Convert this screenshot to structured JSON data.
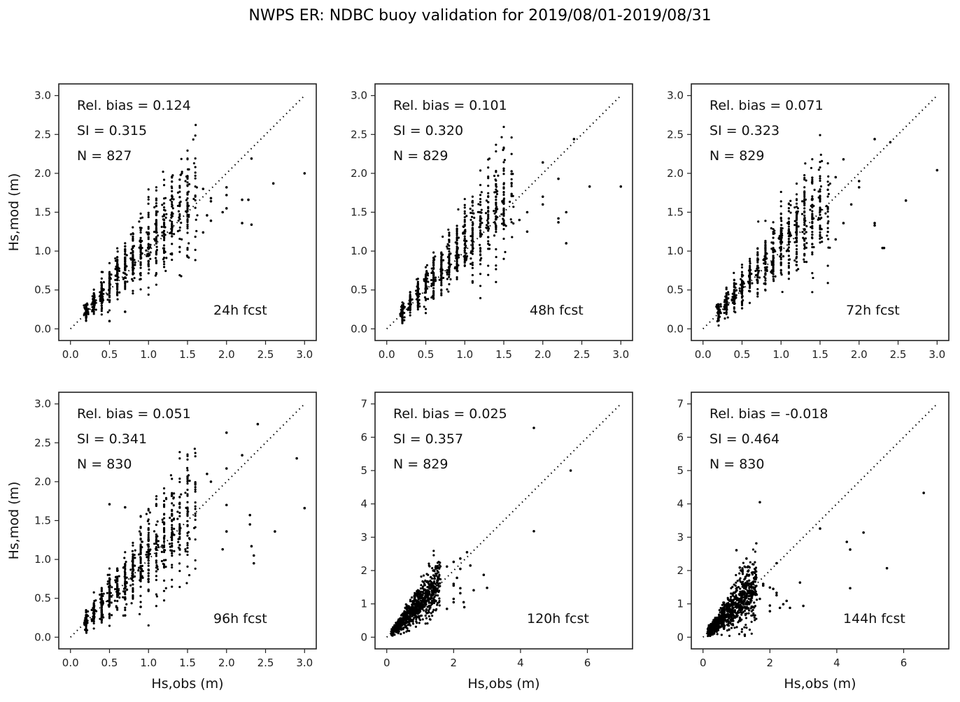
{
  "figure": {
    "title": "NWPS ER: NDBC buoy validation for 2019/08/01-2019/08/31"
  },
  "chart_data": [
    {
      "type": "scatter",
      "panel": "24h fcst",
      "xlabel": "",
      "ylabel": "Hs,mod (m)",
      "xlim": [
        -0.15,
        3.15
      ],
      "ylim": [
        -0.15,
        3.15
      ],
      "xticks": [
        "0.0",
        "0.5",
        "1.0",
        "1.5",
        "2.0",
        "2.5",
        "3.0"
      ],
      "yticks": [
        "0.0",
        "0.5",
        "1.0",
        "1.5",
        "2.0",
        "2.5",
        "3.0"
      ],
      "tickvals": [
        0,
        0.5,
        1,
        1.5,
        2,
        2.5,
        3
      ],
      "stats": {
        "rel_bias": "Rel. bias =  0.124",
        "si": "SI =  0.315",
        "n": "N = 827"
      },
      "label": "24h fcst",
      "identity_line": [
        0,
        3
      ],
      "cloud": {
        "n": 827,
        "bias": 0.124,
        "si": 0.315,
        "xmax": 1.6
      },
      "outliers": [
        [
          3.0,
          2.0
        ],
        [
          2.6,
          1.87
        ],
        [
          2.32,
          2.19
        ],
        [
          2.2,
          1.36
        ],
        [
          2.32,
          1.34
        ],
        [
          2.2,
          1.66
        ],
        [
          2.28,
          1.66
        ],
        [
          2.0,
          1.82
        ],
        [
          2.0,
          1.72
        ],
        [
          1.95,
          1.5
        ],
        [
          2.0,
          1.55
        ],
        [
          1.8,
          1.64
        ],
        [
          1.8,
          1.68
        ],
        [
          1.7,
          1.8
        ],
        [
          1.7,
          1.24
        ],
        [
          1.8,
          1.39
        ],
        [
          1.75,
          1.46
        ],
        [
          0.7,
          0.22
        ],
        [
          0.5,
          0.1
        ]
      ]
    },
    {
      "type": "scatter",
      "panel": "48h fcst",
      "xlabel": "",
      "ylabel": "",
      "xlim": [
        -0.15,
        3.15
      ],
      "ylim": [
        -0.15,
        3.15
      ],
      "xticks": [
        "0.0",
        "0.5",
        "1.0",
        "1.5",
        "2.0",
        "2.5",
        "3.0"
      ],
      "yticks": [
        "0.0",
        "0.5",
        "1.0",
        "1.5",
        "2.0",
        "2.5",
        "3.0"
      ],
      "tickvals": [
        0,
        0.5,
        1,
        1.5,
        2,
        2.5,
        3
      ],
      "stats": {
        "rel_bias": "Rel. bias =  0.101",
        "si": "SI =  0.320",
        "n": "N = 829"
      },
      "label": "48h fcst",
      "identity_line": [
        0,
        3
      ],
      "cloud": {
        "n": 829,
        "bias": 0.101,
        "si": 0.32,
        "xmax": 1.6
      },
      "outliers": [
        [
          3.0,
          1.83
        ],
        [
          2.6,
          1.83
        ],
        [
          2.4,
          2.44
        ],
        [
          2.0,
          2.14
        ],
        [
          2.2,
          1.93
        ],
        [
          2.0,
          1.7
        ],
        [
          2.0,
          1.6
        ],
        [
          2.2,
          1.42
        ],
        [
          2.2,
          1.37
        ],
        [
          2.3,
          1.5
        ],
        [
          2.3,
          1.1
        ],
        [
          1.8,
          1.5
        ],
        [
          1.8,
          1.25
        ],
        [
          1.7,
          1.4
        ]
      ]
    },
    {
      "type": "scatter",
      "panel": "72h fcst",
      "xlabel": "",
      "ylabel": "",
      "xlim": [
        -0.15,
        3.15
      ],
      "ylim": [
        -0.15,
        3.15
      ],
      "xticks": [
        "0.0",
        "0.5",
        "1.0",
        "1.5",
        "2.0",
        "2.5",
        "3.0"
      ],
      "yticks": [
        "0.0",
        "0.5",
        "1.0",
        "1.5",
        "2.0",
        "2.5",
        "3.0"
      ],
      "tickvals": [
        0,
        0.5,
        1,
        1.5,
        2,
        2.5,
        3
      ],
      "stats": {
        "rel_bias": "Rel. bias =  0.071",
        "si": "SI =  0.323",
        "n": "N = 829"
      },
      "label": "72h fcst",
      "identity_line": [
        0,
        3
      ],
      "cloud": {
        "n": 829,
        "bias": 0.071,
        "si": 0.323,
        "xmax": 1.6
      },
      "outliers": [
        [
          3.0,
          2.04
        ],
        [
          2.6,
          1.65
        ],
        [
          2.2,
          2.44
        ],
        [
          2.4,
          2.4
        ],
        [
          2.2,
          1.36
        ],
        [
          2.2,
          1.33
        ],
        [
          2.3,
          1.04
        ],
        [
          2.32,
          1.04
        ],
        [
          2.0,
          1.9
        ],
        [
          2.0,
          1.82
        ],
        [
          1.8,
          2.18
        ],
        [
          1.7,
          1.95
        ],
        [
          1.9,
          1.6
        ],
        [
          1.8,
          1.36
        ],
        [
          1.7,
          1.15
        ]
      ]
    },
    {
      "type": "scatter",
      "panel": "96h fcst",
      "xlabel": "Hs,obs (m)",
      "ylabel": "Hs,mod (m)",
      "xlim": [
        -0.15,
        3.15
      ],
      "ylim": [
        -0.15,
        3.15
      ],
      "xticks": [
        "0.0",
        "0.5",
        "1.0",
        "1.5",
        "2.0",
        "2.5",
        "3.0"
      ],
      "yticks": [
        "0.0",
        "0.5",
        "1.0",
        "1.5",
        "2.0",
        "2.5",
        "3.0"
      ],
      "tickvals": [
        0,
        0.5,
        1,
        1.5,
        2,
        2.5,
        3
      ],
      "stats": {
        "rel_bias": "Rel. bias =  0.051",
        "si": "SI =  0.341",
        "n": "N = 830"
      },
      "label": "96h fcst",
      "identity_line": [
        0,
        3
      ],
      "cloud": {
        "n": 830,
        "bias": 0.051,
        "si": 0.341,
        "xmax": 1.6
      },
      "outliers": [
        [
          3.0,
          1.66
        ],
        [
          2.9,
          2.3
        ],
        [
          2.62,
          1.36
        ],
        [
          2.4,
          2.74
        ],
        [
          2.2,
          2.34
        ],
        [
          2.0,
          2.63
        ],
        [
          2.0,
          2.17
        ],
        [
          2.0,
          1.7
        ],
        [
          2.0,
          1.36
        ],
        [
          2.3,
          1.57
        ],
        [
          2.3,
          1.45
        ],
        [
          2.32,
          1.17
        ],
        [
          2.35,
          1.05
        ],
        [
          2.35,
          0.95
        ],
        [
          1.95,
          1.13
        ],
        [
          1.8,
          2.0
        ],
        [
          1.75,
          2.1
        ],
        [
          0.5,
          1.71
        ],
        [
          0.7,
          1.67
        ],
        [
          0.9,
          0.39
        ],
        [
          0.7,
          0.28
        ]
      ]
    },
    {
      "type": "scatter",
      "panel": "120h fcst",
      "xlabel": "Hs,obs (m)",
      "ylabel": "",
      "xlim": [
        -0.35,
        7.35
      ],
      "ylim": [
        -0.35,
        7.35
      ],
      "xticks": [
        "0",
        "2",
        "4",
        "6"
      ],
      "yticks": [
        "0",
        "1",
        "2",
        "3",
        "4",
        "5",
        "6",
        "7"
      ],
      "xtickvals": [
        0,
        2,
        4,
        6
      ],
      "ytickvals": [
        0,
        1,
        2,
        3,
        4,
        5,
        6,
        7
      ],
      "stats": {
        "rel_bias": "Rel. bias =  0.025",
        "si": "SI =  0.357",
        "n": "N = 829"
      },
      "label": "120h fcst",
      "identity_line": [
        0,
        7
      ],
      "cloud": {
        "n": 829,
        "bias": 0.025,
        "si": 0.357,
        "xmax": 1.6
      },
      "outliers": [
        [
          4.4,
          6.28
        ],
        [
          5.5,
          5.0
        ],
        [
          4.4,
          3.18
        ],
        [
          2.4,
          2.55
        ],
        [
          2.2,
          2.36
        ],
        [
          2.0,
          2.26
        ],
        [
          1.8,
          2.12
        ],
        [
          2.5,
          2.15
        ],
        [
          2.2,
          2.05
        ],
        [
          2.1,
          1.78
        ],
        [
          2.9,
          1.87
        ],
        [
          3.0,
          1.48
        ],
        [
          2.6,
          1.41
        ],
        [
          2.0,
          1.6
        ],
        [
          2.0,
          1.55
        ],
        [
          2.2,
          1.47
        ],
        [
          2.2,
          1.32
        ],
        [
          2.0,
          1.15
        ],
        [
          2.0,
          1.05
        ],
        [
          2.3,
          1.05
        ],
        [
          2.32,
          0.9
        ],
        [
          1.8,
          0.85
        ]
      ]
    },
    {
      "type": "scatter",
      "panel": "144h fcst",
      "xlabel": "Hs,obs (m)",
      "ylabel": "",
      "xlim": [
        -0.35,
        7.35
      ],
      "ylim": [
        -0.35,
        7.35
      ],
      "xticks": [
        "0",
        "2",
        "4",
        "6"
      ],
      "yticks": [
        "0",
        "1",
        "2",
        "3",
        "4",
        "5",
        "6",
        "7"
      ],
      "xtickvals": [
        0,
        2,
        4,
        6
      ],
      "ytickvals": [
        0,
        1,
        2,
        3,
        4,
        5,
        6,
        7
      ],
      "stats": {
        "rel_bias": "Rel. bias = -0.018",
        "si": "SI =  0.464",
        "n": "N = 830"
      },
      "label": "144h fcst",
      "identity_line": [
        0,
        7
      ],
      "cloud": {
        "n": 830,
        "bias": -0.018,
        "si": 0.464,
        "xmax": 1.6
      },
      "outliers": [
        [
          6.6,
          4.33
        ],
        [
          1.7,
          4.05
        ],
        [
          3.5,
          3.26
        ],
        [
          4.8,
          3.14
        ],
        [
          4.3,
          2.86
        ],
        [
          4.4,
          2.63
        ],
        [
          1.0,
          2.61
        ],
        [
          1.3,
          2.36
        ],
        [
          2.2,
          2.22
        ],
        [
          5.5,
          2.07
        ],
        [
          1.1,
          2.09
        ],
        [
          4.4,
          1.47
        ],
        [
          2.9,
          1.64
        ],
        [
          3.0,
          0.94
        ],
        [
          2.6,
          0.88
        ],
        [
          2.3,
          0.88
        ],
        [
          2.4,
          0.99
        ],
        [
          2.5,
          1.09
        ],
        [
          2.2,
          1.33
        ],
        [
          2.2,
          1.26
        ],
        [
          2.1,
          1.45
        ],
        [
          2.0,
          1.49
        ],
        [
          2.0,
          0.95
        ],
        [
          2.0,
          0.78
        ],
        [
          1.8,
          1.6
        ],
        [
          1.8,
          1.55
        ],
        [
          1.7,
          1.15
        ],
        [
          1.5,
          1.65
        ]
      ]
    }
  ]
}
